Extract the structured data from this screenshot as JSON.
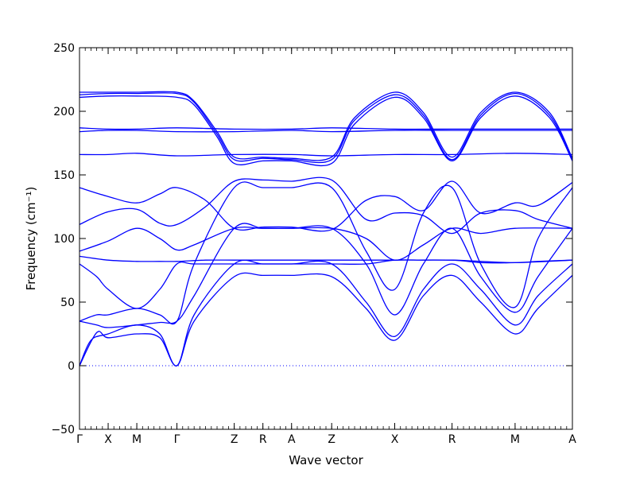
{
  "chart_data": {
    "type": "line",
    "title": "",
    "xlabel": "Wave vector",
    "ylabel": "Frequency (cm⁻¹)",
    "ylim": [
      -50,
      250
    ],
    "yticks": [
      -50,
      0,
      50,
      100,
      150,
      200,
      250
    ],
    "grid": false,
    "zero_line": "dotted",
    "line_color": "#0000ff",
    "high_symmetry_points": [
      {
        "label": "Γ",
        "x": 0.0
      },
      {
        "label": "X",
        "x": 0.5
      },
      {
        "label": "M",
        "x": 1.0
      },
      {
        "label": "Γ",
        "x": 1.7
      },
      {
        "label": "Z",
        "x": 2.7
      },
      {
        "label": "R",
        "x": 3.2
      },
      {
        "label": "A",
        "x": 3.7
      },
      {
        "label": "Z",
        "x": 4.4
      },
      {
        "label": "X",
        "x": 5.5
      },
      {
        "label": "R",
        "x": 6.5
      },
      {
        "label": "M",
        "x": 7.6
      },
      {
        "label": "A",
        "x": 8.6
      }
    ],
    "series": [
      {
        "values": [
          [
            0,
            0
          ],
          [
            0.3,
            26
          ],
          [
            0.5,
            22
          ],
          [
            1.0,
            25
          ],
          [
            1.4,
            22
          ],
          [
            1.7,
            0
          ],
          [
            2.0,
            35
          ],
          [
            2.7,
            70
          ],
          [
            3.2,
            71
          ],
          [
            3.7,
            71
          ],
          [
            4.4,
            70
          ],
          [
            5.0,
            45
          ],
          [
            5.5,
            20
          ],
          [
            6.0,
            55
          ],
          [
            6.5,
            71
          ],
          [
            7.0,
            50
          ],
          [
            7.6,
            25
          ],
          [
            8.0,
            45
          ],
          [
            8.6,
            71
          ]
        ]
      },
      {
        "values": [
          [
            0,
            0
          ],
          [
            0.2,
            20
          ],
          [
            0.5,
            25
          ],
          [
            1.0,
            32
          ],
          [
            1.4,
            25
          ],
          [
            1.7,
            0
          ],
          [
            2.0,
            40
          ],
          [
            2.7,
            80
          ],
          [
            3.2,
            80
          ],
          [
            3.7,
            80
          ],
          [
            4.4,
            80
          ],
          [
            5.0,
            50
          ],
          [
            5.5,
            23
          ],
          [
            6.0,
            60
          ],
          [
            6.5,
            80
          ],
          [
            7.0,
            60
          ],
          [
            7.6,
            32
          ],
          [
            8.0,
            55
          ],
          [
            8.6,
            80
          ]
        ]
      },
      {
        "values": [
          [
            0,
            35
          ],
          [
            0.3,
            32
          ],
          [
            0.5,
            30
          ],
          [
            1.0,
            32
          ],
          [
            1.4,
            34
          ],
          [
            1.7,
            35
          ],
          [
            2.0,
            55
          ],
          [
            2.7,
            108
          ],
          [
            3.2,
            108
          ],
          [
            3.7,
            108
          ],
          [
            4.4,
            108
          ],
          [
            5.0,
            80
          ],
          [
            5.5,
            40
          ],
          [
            6.0,
            80
          ],
          [
            6.5,
            108
          ],
          [
            7.0,
            70
          ],
          [
            7.6,
            42
          ],
          [
            8.0,
            70
          ],
          [
            8.6,
            108
          ]
        ]
      },
      {
        "values": [
          [
            0,
            35
          ],
          [
            0.3,
            40
          ],
          [
            0.5,
            40
          ],
          [
            1.0,
            45
          ],
          [
            1.4,
            40
          ],
          [
            1.7,
            35
          ],
          [
            2.0,
            80
          ],
          [
            2.7,
            140
          ],
          [
            3.2,
            140
          ],
          [
            3.7,
            140
          ],
          [
            4.4,
            140
          ],
          [
            5.0,
            90
          ],
          [
            5.5,
            60
          ],
          [
            6.0,
            120
          ],
          [
            6.5,
            140
          ],
          [
            7.0,
            80
          ],
          [
            7.6,
            46
          ],
          [
            8.0,
            100
          ],
          [
            8.6,
            140
          ]
        ]
      },
      {
        "values": [
          [
            0,
            80
          ],
          [
            0.3,
            70
          ],
          [
            0.5,
            60
          ],
          [
            1.0,
            45
          ],
          [
            1.4,
            60
          ],
          [
            1.7,
            80
          ],
          [
            2.0,
            80
          ],
          [
            2.7,
            80
          ],
          [
            3.2,
            80
          ],
          [
            3.7,
            80
          ],
          [
            4.4,
            80
          ],
          [
            5.0,
            80
          ],
          [
            5.5,
            83
          ],
          [
            6.0,
            83
          ],
          [
            6.5,
            83
          ],
          [
            7.0,
            82
          ],
          [
            7.6,
            81
          ],
          [
            8.0,
            82
          ],
          [
            8.6,
            83
          ]
        ]
      },
      {
        "values": [
          [
            0,
            86
          ],
          [
            0.5,
            83
          ],
          [
            1.0,
            82
          ],
          [
            1.4,
            82
          ],
          [
            1.7,
            82
          ],
          [
            2.2,
            83
          ],
          [
            2.7,
            83
          ],
          [
            3.2,
            83
          ],
          [
            3.7,
            83
          ],
          [
            4.4,
            83
          ],
          [
            5.0,
            83
          ],
          [
            5.5,
            83
          ],
          [
            6.5,
            83
          ],
          [
            7.0,
            81
          ],
          [
            7.6,
            81
          ],
          [
            8.6,
            83
          ]
        ]
      },
      {
        "values": [
          [
            0,
            90
          ],
          [
            0.5,
            98
          ],
          [
            1.0,
            108
          ],
          [
            1.4,
            100
          ],
          [
            1.7,
            91
          ],
          [
            2.0,
            95
          ],
          [
            2.7,
            108
          ],
          [
            3.2,
            108
          ],
          [
            3.7,
            108
          ],
          [
            4.4,
            108
          ],
          [
            5.0,
            100
          ],
          [
            5.5,
            83
          ],
          [
            6.0,
            95
          ],
          [
            6.5,
            108
          ],
          [
            7.0,
            104
          ],
          [
            7.6,
            108
          ],
          [
            8.6,
            108
          ]
        ]
      },
      {
        "values": [
          [
            0,
            111
          ],
          [
            0.5,
            121
          ],
          [
            1.0,
            123
          ],
          [
            1.4,
            112
          ],
          [
            1.7,
            111
          ],
          [
            2.2,
            125
          ],
          [
            2.7,
            145
          ],
          [
            3.2,
            146
          ],
          [
            3.7,
            145
          ],
          [
            4.4,
            146
          ],
          [
            5.0,
            115
          ],
          [
            5.5,
            120
          ],
          [
            6.0,
            118
          ],
          [
            6.5,
            104
          ],
          [
            7.0,
            120
          ],
          [
            7.6,
            122
          ],
          [
            8.0,
            115
          ],
          [
            8.6,
            108
          ]
        ]
      },
      {
        "values": [
          [
            0,
            140
          ],
          [
            0.5,
            133
          ],
          [
            1.0,
            128
          ],
          [
            1.4,
            135
          ],
          [
            1.7,
            140
          ],
          [
            2.2,
            130
          ],
          [
            2.7,
            108
          ],
          [
            3.2,
            109
          ],
          [
            3.7,
            109
          ],
          [
            4.4,
            107
          ],
          [
            5.0,
            130
          ],
          [
            5.5,
            133
          ],
          [
            6.0,
            122
          ],
          [
            6.5,
            145
          ],
          [
            7.0,
            120
          ],
          [
            7.6,
            128
          ],
          [
            8.0,
            126
          ],
          [
            8.6,
            144
          ]
        ]
      },
      {
        "values": [
          [
            0,
            166
          ],
          [
            0.5,
            166
          ],
          [
            1.0,
            167
          ],
          [
            1.7,
            165
          ],
          [
            2.7,
            166
          ],
          [
            3.7,
            166
          ],
          [
            4.4,
            165
          ],
          [
            5.5,
            166
          ],
          [
            6.5,
            166
          ],
          [
            7.6,
            167
          ],
          [
            8.6,
            166
          ]
        ]
      },
      {
        "values": [
          [
            0,
            184
          ],
          [
            0.5,
            185
          ],
          [
            1.0,
            185
          ],
          [
            1.7,
            184
          ],
          [
            2.7,
            184
          ],
          [
            3.7,
            185
          ],
          [
            4.4,
            184
          ],
          [
            5.5,
            185
          ],
          [
            6.5,
            185
          ],
          [
            7.6,
            185
          ],
          [
            8.6,
            185
          ]
        ]
      },
      {
        "values": [
          [
            0,
            187
          ],
          [
            0.5,
            186
          ],
          [
            1.0,
            186
          ],
          [
            1.7,
            187
          ],
          [
            2.7,
            186
          ],
          [
            3.7,
            186
          ],
          [
            4.4,
            187
          ],
          [
            5.5,
            186
          ],
          [
            6.5,
            186
          ],
          [
            7.6,
            186
          ],
          [
            8.6,
            186
          ]
        ]
      },
      {
        "values": [
          [
            0,
            211
          ],
          [
            0.5,
            212
          ],
          [
            1.0,
            212
          ],
          [
            1.7,
            211
          ],
          [
            2.0,
            205
          ],
          [
            2.4,
            180
          ],
          [
            2.7,
            159
          ],
          [
            3.2,
            161
          ],
          [
            3.7,
            161
          ],
          [
            4.4,
            159
          ],
          [
            4.8,
            190
          ],
          [
            5.5,
            211
          ],
          [
            6.0,
            195
          ],
          [
            6.5,
            161
          ],
          [
            7.0,
            195
          ],
          [
            7.6,
            212
          ],
          [
            8.2,
            195
          ],
          [
            8.6,
            161
          ]
        ]
      },
      {
        "values": [
          [
            0,
            213
          ],
          [
            0.5,
            214
          ],
          [
            1.0,
            214
          ],
          [
            1.7,
            214
          ],
          [
            2.0,
            207
          ],
          [
            2.4,
            182
          ],
          [
            2.7,
            162
          ],
          [
            3.2,
            163
          ],
          [
            3.7,
            162
          ],
          [
            4.4,
            162
          ],
          [
            4.8,
            193
          ],
          [
            5.5,
            213
          ],
          [
            6.0,
            197
          ],
          [
            6.5,
            162
          ],
          [
            7.0,
            197
          ],
          [
            7.6,
            214
          ],
          [
            8.2,
            197
          ],
          [
            8.6,
            162
          ]
        ]
      },
      {
        "values": [
          [
            0,
            215
          ],
          [
            0.5,
            215
          ],
          [
            1.0,
            215
          ],
          [
            1.7,
            215
          ],
          [
            2.0,
            208
          ],
          [
            2.4,
            184
          ],
          [
            2.7,
            164
          ],
          [
            3.2,
            164
          ],
          [
            3.7,
            163
          ],
          [
            4.4,
            164
          ],
          [
            4.8,
            195
          ],
          [
            5.5,
            215
          ],
          [
            6.0,
            199
          ],
          [
            6.5,
            164
          ],
          [
            7.0,
            199
          ],
          [
            7.6,
            215
          ],
          [
            8.2,
            199
          ],
          [
            8.6,
            163
          ]
        ]
      }
    ]
  }
}
